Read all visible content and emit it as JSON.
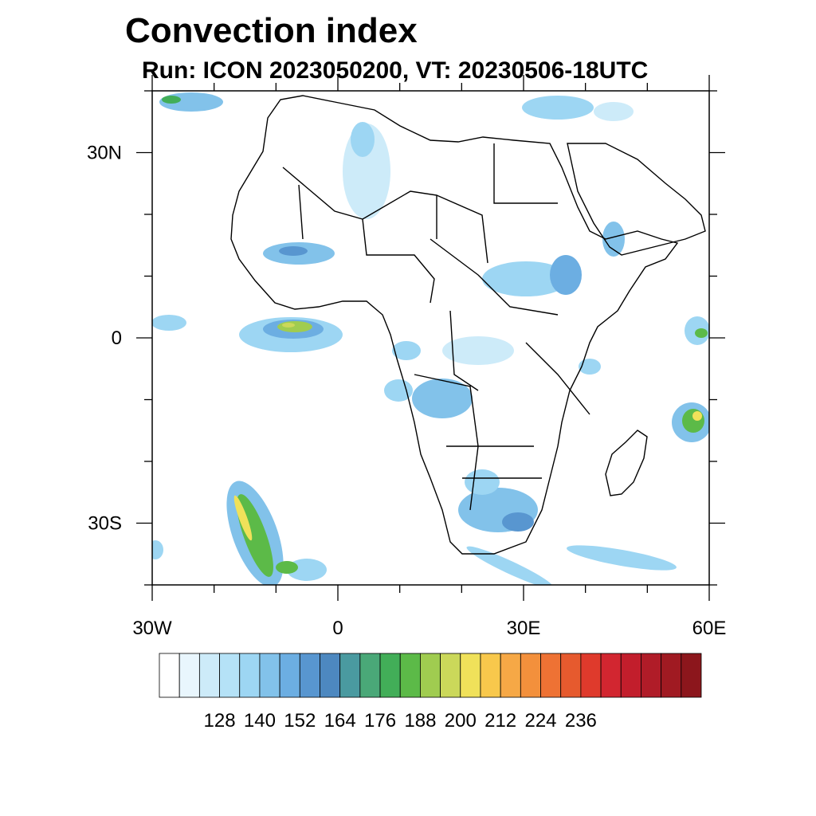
{
  "title": "Convection index",
  "subtitle": "Run: ICON 2023050200,  VT: 20230506-18UTC",
  "map": {
    "lon_range": [
      -30,
      60
    ],
    "lat_range": [
      -40,
      40
    ],
    "lat_ticks": [
      {
        "value": 30,
        "label": "30N"
      },
      {
        "value": 0,
        "label": "0"
      },
      {
        "value": -30,
        "label": "30S"
      }
    ],
    "lon_ticks": [
      {
        "value": -30,
        "label": "30W"
      },
      {
        "value": 0,
        "label": "0"
      },
      {
        "value": 30,
        "label": "30E"
      },
      {
        "value": 60,
        "label": "60E"
      }
    ],
    "minor_lat_ticks": [
      40,
      20,
      10,
      -10,
      -20,
      -40
    ],
    "minor_lon_ticks": [
      -20,
      -10,
      10,
      20,
      40,
      50
    ]
  },
  "colorbar": {
    "labels": [
      "128",
      "140",
      "152",
      "164",
      "176",
      "188",
      "200",
      "212",
      "224",
      "236"
    ],
    "colors": [
      "#ffffff",
      "#e9f6fd",
      "#cdebf9",
      "#b5e2f7",
      "#9dd6f3",
      "#82c2ea",
      "#6caee2",
      "#5896d0",
      "#4d88c0",
      "#4a9aa0",
      "#4aa878",
      "#42ae58",
      "#5cba48",
      "#a0cc50",
      "#cbd85a",
      "#f0e15a",
      "#f8c84c",
      "#f6a846",
      "#f3903c",
      "#ee7234",
      "#e65a2e",
      "#df3a2c",
      "#d22630",
      "#c21e2c",
      "#b01c28",
      "#a01a22",
      "#8c161c"
    ]
  }
}
